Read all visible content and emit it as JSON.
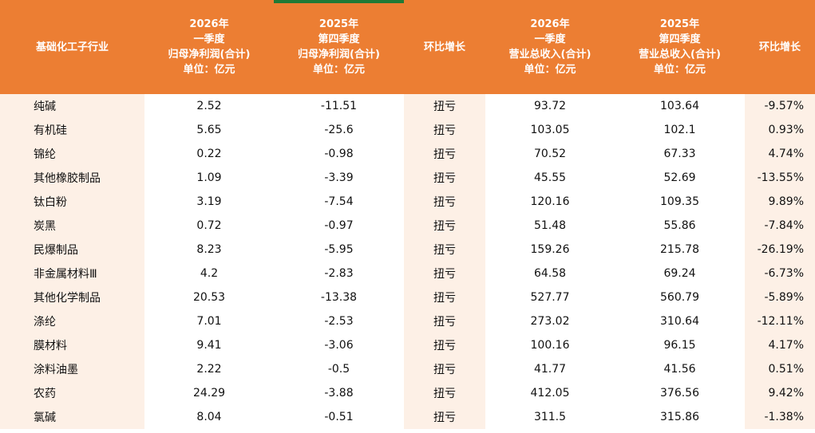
{
  "table": {
    "headers": [
      {
        "lines": [
          "基础化工子行业"
        ]
      },
      {
        "lines": [
          "2026年",
          "一季度",
          "归母净利润(合计)",
          "单位：亿元"
        ]
      },
      {
        "lines": [
          "2025年",
          "第四季度",
          "归母净利润(合计)",
          "单位：亿元"
        ]
      },
      {
        "lines": [
          "环比增长"
        ]
      },
      {
        "lines": [
          "2026年",
          "一季度",
          "营业总收入(合计)",
          "单位：亿元"
        ]
      },
      {
        "lines": [
          "2025年",
          "第四季度",
          "营业总收入(合计)",
          "单位：亿元"
        ]
      },
      {
        "lines": [
          "环比增长"
        ]
      }
    ],
    "rows": [
      [
        "纯碱",
        "2.52",
        "-11.51",
        "扭亏",
        "93.72",
        "103.64",
        "-9.57%"
      ],
      [
        "有机硅",
        "5.65",
        "-25.6",
        "扭亏",
        "103.05",
        "102.1",
        "0.93%"
      ],
      [
        "锦纶",
        "0.22",
        "-0.98",
        "扭亏",
        "70.52",
        "67.33",
        "4.74%"
      ],
      [
        "其他橡胶制品",
        "1.09",
        "-3.39",
        "扭亏",
        "45.55",
        "52.69",
        "-13.55%"
      ],
      [
        "钛白粉",
        "3.19",
        "-7.54",
        "扭亏",
        "120.16",
        "109.35",
        "9.89%"
      ],
      [
        "炭黑",
        "0.72",
        "-0.97",
        "扭亏",
        "51.48",
        "55.86",
        "-7.84%"
      ],
      [
        "民爆制品",
        "8.23",
        "-5.95",
        "扭亏",
        "159.26",
        "215.78",
        "-26.19%"
      ],
      [
        "非金属材料Ⅲ",
        "4.2",
        "-2.83",
        "扭亏",
        "64.58",
        "69.24",
        "-6.73%"
      ],
      [
        "其他化学制品",
        "20.53",
        "-13.38",
        "扭亏",
        "527.77",
        "560.79",
        "-5.89%"
      ],
      [
        "涤纶",
        "7.01",
        "-2.53",
        "扭亏",
        "273.02",
        "310.64",
        "-12.11%"
      ],
      [
        "膜材料",
        "9.41",
        "-3.06",
        "扭亏",
        "100.16",
        "96.15",
        "4.17%"
      ],
      [
        "涂料油墨",
        "2.22",
        "-0.5",
        "扭亏",
        "41.77",
        "41.56",
        "0.51%"
      ],
      [
        "农药",
        "24.29",
        "-3.88",
        "扭亏",
        "412.05",
        "376.56",
        "9.42%"
      ],
      [
        "氯碱",
        "8.04",
        "-0.51",
        "扭亏",
        "311.5",
        "315.86",
        "-1.38%"
      ]
    ]
  },
  "colors": {
    "header_bg": "#ec7e33",
    "header_text": "#ffffff",
    "band_light": "#fdf0e6",
    "band_white": "#ffffff",
    "accent_bar": "#1f7a36"
  }
}
